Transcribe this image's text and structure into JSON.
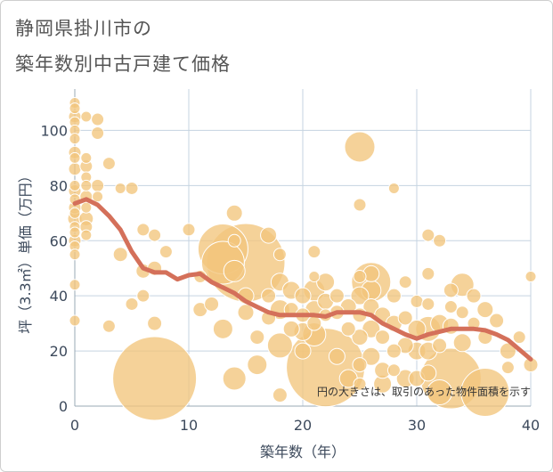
{
  "title": {
    "line1": "静岡県掛川市の",
    "line2": "築年数別中古戸建て価格"
  },
  "chart_data": {
    "type": "scatter",
    "title": "静岡県掛川市の築年数別中古戸建て価格",
    "xlabel": "築年数（年）",
    "ylabel": "坪（3.3㎡）単価（万円）",
    "xlim": [
      0,
      40
    ],
    "ylim": [
      0,
      115
    ],
    "xticks": [
      0,
      10,
      20,
      30,
      40
    ],
    "yticks": [
      0,
      20,
      40,
      60,
      80,
      100
    ],
    "grid": true,
    "annotation": "円の大きさは、取引のあった物件面積を示す",
    "bubble_color": "#f2c57c",
    "line_color": "#d4705a",
    "points": [
      [
        0,
        110,
        6
      ],
      [
        0,
        108,
        6
      ],
      [
        0,
        105,
        7
      ],
      [
        0,
        103,
        6
      ],
      [
        0,
        100,
        6
      ],
      [
        0,
        97,
        6
      ],
      [
        0,
        92,
        7
      ],
      [
        0,
        90,
        6
      ],
      [
        0,
        86,
        7
      ],
      [
        0,
        80,
        6
      ],
      [
        0,
        78,
        7
      ],
      [
        0,
        75,
        6
      ],
      [
        0,
        72,
        7
      ],
      [
        0,
        70,
        6
      ],
      [
        0,
        68,
        8
      ],
      [
        0,
        65,
        6
      ],
      [
        0,
        63,
        6
      ],
      [
        0,
        60,
        7
      ],
      [
        0,
        58,
        6
      ],
      [
        0,
        55,
        6
      ],
      [
        0,
        44,
        6
      ],
      [
        0,
        31,
        6
      ],
      [
        1,
        105,
        6
      ],
      [
        1,
        90,
        6
      ],
      [
        1,
        87,
        7
      ],
      [
        1,
        83,
        6
      ],
      [
        1,
        80,
        6
      ],
      [
        1,
        76,
        7
      ],
      [
        1,
        72,
        6
      ],
      [
        1,
        68,
        8
      ],
      [
        1,
        65,
        7
      ],
      [
        1,
        62,
        6
      ],
      [
        2,
        104,
        7
      ],
      [
        2,
        99,
        7
      ],
      [
        2,
        80,
        7
      ],
      [
        2,
        76,
        6
      ],
      [
        3,
        88,
        7
      ],
      [
        3,
        29,
        7
      ],
      [
        4,
        79,
        6
      ],
      [
        4,
        55,
        8
      ],
      [
        5,
        79,
        7
      ],
      [
        5,
        37,
        7
      ],
      [
        6,
        64,
        7
      ],
      [
        6,
        49,
        8
      ],
      [
        6,
        40,
        7
      ],
      [
        7,
        62,
        7
      ],
      [
        7,
        50,
        8
      ],
      [
        7,
        30,
        8
      ],
      [
        7,
        10,
        47
      ],
      [
        8,
        56,
        7
      ],
      [
        10,
        64,
        7
      ],
      [
        11,
        47,
        7
      ],
      [
        11,
        35,
        8
      ],
      [
        12,
        37,
        8
      ],
      [
        13,
        57,
        28
      ],
      [
        13,
        52,
        24
      ],
      [
        13,
        28,
        11
      ],
      [
        14,
        70,
        9
      ],
      [
        14,
        60,
        7
      ],
      [
        14,
        49,
        12
      ],
      [
        14,
        10,
        13
      ],
      [
        15,
        52,
        44
      ],
      [
        15,
        40,
        9
      ],
      [
        15,
        34,
        9
      ],
      [
        16,
        25,
        8
      ],
      [
        16,
        15,
        11
      ],
      [
        17,
        62,
        9
      ],
      [
        17,
        40,
        8
      ],
      [
        17,
        32,
        8
      ],
      [
        18,
        55,
        7
      ],
      [
        18,
        45,
        10
      ],
      [
        18,
        35,
        11
      ],
      [
        18,
        22,
        14
      ],
      [
        18,
        4,
        8
      ],
      [
        19,
        42,
        10
      ],
      [
        19,
        35,
        8
      ],
      [
        19,
        28,
        9
      ],
      [
        20,
        40,
        9
      ],
      [
        20,
        33,
        8
      ],
      [
        20,
        27,
        10
      ],
      [
        20,
        20,
        9
      ],
      [
        21,
        56,
        7
      ],
      [
        21,
        47,
        6
      ],
      [
        21,
        42,
        12
      ],
      [
        21,
        35,
        10
      ],
      [
        21,
        30,
        8
      ],
      [
        21,
        26,
        13
      ],
      [
        22,
        45,
        10
      ],
      [
        22,
        38,
        9
      ],
      [
        22,
        33,
        7
      ],
      [
        22,
        14,
        44
      ],
      [
        23,
        40,
        8
      ],
      [
        23,
        34,
        8
      ],
      [
        23,
        18,
        9
      ],
      [
        24,
        36,
        9
      ],
      [
        24,
        28,
        8
      ],
      [
        24,
        10,
        10
      ],
      [
        25,
        94,
        17
      ],
      [
        25,
        73,
        7
      ],
      [
        25,
        47,
        7
      ],
      [
        25,
        40,
        10
      ],
      [
        25,
        33,
        8
      ],
      [
        25,
        25,
        9
      ],
      [
        25,
        15,
        8
      ],
      [
        25,
        8,
        7
      ],
      [
        26,
        48,
        9
      ],
      [
        26,
        45,
        22
      ],
      [
        26,
        42,
        11
      ],
      [
        26,
        36,
        9
      ],
      [
        26,
        28,
        10
      ],
      [
        26,
        18,
        10
      ],
      [
        27,
        33,
        9
      ],
      [
        27,
        25,
        8
      ],
      [
        27,
        13,
        9
      ],
      [
        27,
        8,
        10
      ],
      [
        28,
        79,
        6
      ],
      [
        28,
        40,
        8
      ],
      [
        28,
        30,
        9
      ],
      [
        28,
        20,
        8
      ],
      [
        28,
        13,
        7
      ],
      [
        29,
        45,
        7
      ],
      [
        29,
        32,
        8
      ],
      [
        29,
        22,
        9
      ],
      [
        29,
        10,
        10
      ],
      [
        30,
        38,
        7
      ],
      [
        30,
        28,
        10
      ],
      [
        30,
        20,
        10
      ],
      [
        30,
        10,
        9
      ],
      [
        31,
        62,
        7
      ],
      [
        31,
        48,
        7
      ],
      [
        31,
        37,
        7
      ],
      [
        31,
        28,
        14
      ],
      [
        31,
        20,
        10
      ],
      [
        31,
        12,
        9
      ],
      [
        32,
        60,
        7
      ],
      [
        32,
        30,
        10
      ],
      [
        32,
        22,
        8
      ],
      [
        32,
        5,
        14
      ],
      [
        33,
        42,
        8
      ],
      [
        33,
        36,
        7
      ],
      [
        33,
        29,
        9
      ],
      [
        33,
        10,
        34
      ],
      [
        34,
        44,
        13
      ],
      [
        34,
        34,
        7
      ],
      [
        34,
        23,
        10
      ],
      [
        35,
        40,
        8
      ],
      [
        35,
        30,
        7
      ],
      [
        36,
        35,
        9
      ],
      [
        36,
        25,
        8
      ],
      [
        36,
        5,
        27
      ],
      [
        37,
        31,
        8
      ],
      [
        38,
        20,
        9
      ],
      [
        38,
        14,
        7
      ],
      [
        39,
        25,
        7
      ],
      [
        40,
        47,
        6
      ],
      [
        40,
        15,
        8
      ]
    ],
    "trend_line": [
      [
        0,
        73.5
      ],
      [
        1,
        75
      ],
      [
        2,
        73
      ],
      [
        3,
        69
      ],
      [
        4,
        64
      ],
      [
        5,
        56
      ],
      [
        6,
        50
      ],
      [
        7,
        48.5
      ],
      [
        8,
        48.5
      ],
      [
        9,
        46
      ],
      [
        10,
        47.5
      ],
      [
        11,
        48
      ],
      [
        12,
        45
      ],
      [
        13,
        43
      ],
      [
        14,
        41
      ],
      [
        15,
        38
      ],
      [
        16,
        36
      ],
      [
        17,
        34
      ],
      [
        18,
        33
      ],
      [
        19,
        33
      ],
      [
        20,
        33
      ],
      [
        21,
        33
      ],
      [
        22,
        32.5
      ],
      [
        23,
        34
      ],
      [
        24,
        34
      ],
      [
        25,
        34
      ],
      [
        26,
        33
      ],
      [
        27,
        30
      ],
      [
        28,
        28
      ],
      [
        29,
        26
      ],
      [
        30,
        24.5
      ],
      [
        31,
        26
      ],
      [
        32,
        27
      ],
      [
        33,
        28
      ],
      [
        34,
        28
      ],
      [
        35,
        28
      ],
      [
        36,
        27.5
      ],
      [
        37,
        26
      ],
      [
        38,
        24
      ],
      [
        39,
        20.5
      ],
      [
        40,
        17
      ]
    ]
  }
}
